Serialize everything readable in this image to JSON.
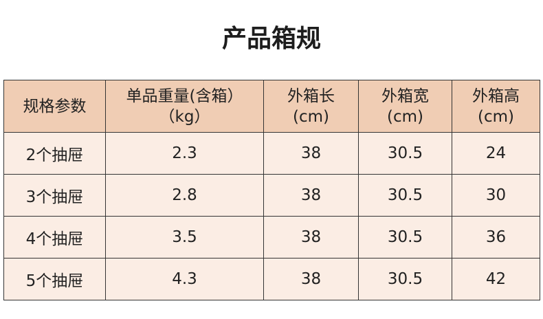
{
  "header": {
    "title": "产品箱规"
  },
  "table": {
    "columns": [
      [
        "规格参数"
      ],
      [
        "单品重量(含箱）",
        "（kg）"
      ],
      [
        "外箱长",
        "(cm)"
      ],
      [
        "外箱宽",
        "(cm)"
      ],
      [
        "外箱高",
        "(cm)"
      ]
    ],
    "rows": [
      [
        "2个抽屉",
        "2.3",
        "38",
        "30.5",
        "24"
      ],
      [
        "3个抽屉",
        "2.8",
        "38",
        "30.5",
        "30"
      ],
      [
        "4个抽屉",
        "3.5",
        "38",
        "30.5",
        "36"
      ],
      [
        "5个抽屉",
        "4.3",
        "38",
        "30.5",
        "42"
      ]
    ]
  }
}
